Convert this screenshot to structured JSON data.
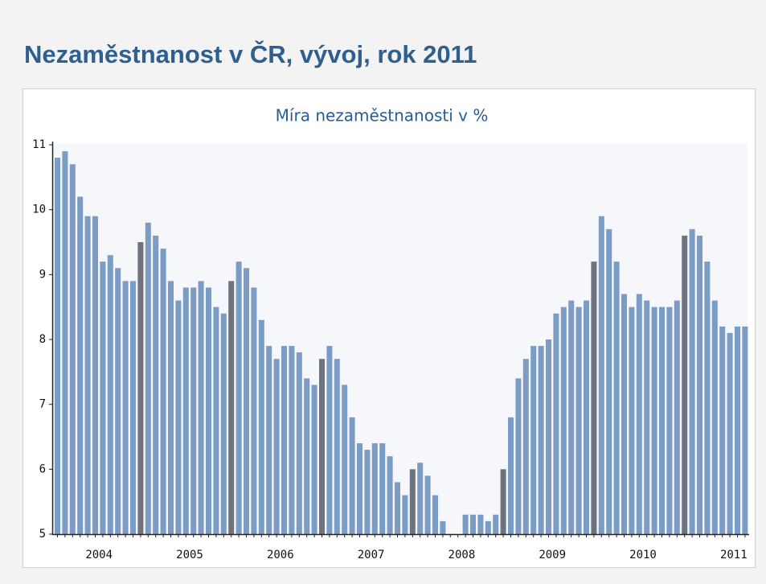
{
  "header": {
    "title": "Nezaměstnanost v ČR, vývoj, rok 2011"
  },
  "chart_data": {
    "type": "bar",
    "title": "Míra nezaměstnanosti v %",
    "categories": [
      null,
      null,
      null,
      null,
      null,
      null,
      null,
      null,
      null,
      null,
      null,
      null,
      null,
      null,
      null,
      null,
      null,
      null,
      null,
      null,
      null,
      null,
      null,
      null,
      null,
      null,
      null,
      null,
      null,
      null,
      null,
      null,
      null,
      null,
      null,
      null,
      null,
      null,
      null,
      null,
      null,
      null,
      null,
      null,
      null,
      null,
      null,
      null,
      null,
      null,
      null,
      null,
      null,
      null,
      null,
      null,
      null,
      null,
      null,
      null,
      null,
      null,
      null,
      null,
      null,
      null,
      null,
      null,
      null,
      null,
      null,
      null,
      null,
      null,
      null,
      null,
      null,
      null,
      null,
      null,
      null,
      null,
      null,
      null,
      null,
      null,
      null,
      null,
      null,
      null,
      null,
      null
    ],
    "values": [
      10.8,
      10.9,
      10.7,
      10.2,
      9.9,
      9.9,
      9.2,
      9.3,
      9.1,
      8.9,
      8.9,
      9.5,
      9.8,
      9.6,
      9.4,
      8.9,
      8.6,
      8.8,
      8.8,
      8.9,
      8.8,
      8.5,
      8.4,
      8.9,
      9.2,
      9.1,
      8.8,
      8.3,
      7.9,
      7.7,
      7.9,
      7.9,
      7.8,
      7.4,
      7.3,
      7.7,
      7.9,
      7.7,
      7.3,
      6.8,
      6.4,
      6.3,
      6.4,
      6.4,
      6.2,
      5.8,
      5.6,
      6.0,
      6.1,
      5.9,
      5.6,
      5.2,
      5.0,
      5.0,
      5.3,
      5.3,
      5.3,
      5.2,
      5.3,
      6.0,
      6.8,
      7.4,
      7.7,
      7.9,
      7.9,
      8.0,
      8.4,
      8.5,
      8.6,
      8.5,
      8.6,
      9.2,
      9.9,
      9.7,
      9.2,
      8.7,
      8.5,
      8.7,
      8.6,
      8.5,
      8.5,
      8.5,
      8.6,
      9.6,
      9.7,
      9.6,
      9.2,
      8.6,
      8.2,
      8.1,
      8.2,
      8.2
    ],
    "colors": [
      "#7b9cc4",
      "#7b9cc4",
      "#7b9cc4",
      "#7b9cc4",
      "#7b9cc4",
      "#7b9cc4",
      "#7b9cc4",
      "#7b9cc4",
      "#7b9cc4",
      "#7b9cc4",
      "#7b9cc4",
      "#6d7480",
      "#7b9cc4",
      "#7b9cc4",
      "#7b9cc4",
      "#7b9cc4",
      "#7b9cc4",
      "#7b9cc4",
      "#7b9cc4",
      "#7b9cc4",
      "#7b9cc4",
      "#7b9cc4",
      "#7b9cc4",
      "#6d7480",
      "#7b9cc4",
      "#7b9cc4",
      "#7b9cc4",
      "#7b9cc4",
      "#7b9cc4",
      "#7b9cc4",
      "#7b9cc4",
      "#7b9cc4",
      "#7b9cc4",
      "#7b9cc4",
      "#7b9cc4",
      "#6d7480",
      "#7b9cc4",
      "#7b9cc4",
      "#7b9cc4",
      "#7b9cc4",
      "#7b9cc4",
      "#7b9cc4",
      "#7b9cc4",
      "#7b9cc4",
      "#7b9cc4",
      "#7b9cc4",
      "#7b9cc4",
      "#6d7480",
      "#7b9cc4",
      "#7b9cc4",
      "#7b9cc4",
      "#7b9cc4",
      "#7b9cc4",
      "#7b9cc4",
      "#7b9cc4",
      "#7b9cc4",
      "#7b9cc4",
      "#7b9cc4",
      "#7b9cc4",
      "#6d7480",
      "#7b9cc4",
      "#7b9cc4",
      "#7b9cc4",
      "#7b9cc4",
      "#7b9cc4",
      "#7b9cc4",
      "#7b9cc4",
      "#7b9cc4",
      "#7b9cc4",
      "#7b9cc4",
      "#7b9cc4",
      "#6d7480",
      "#7b9cc4",
      "#7b9cc4",
      "#7b9cc4",
      "#7b9cc4",
      "#7b9cc4",
      "#7b9cc4",
      "#7b9cc4",
      "#7b9cc4",
      "#7b9cc4",
      "#7b9cc4",
      "#7b9cc4",
      "#6d7480",
      "#7b9cc4",
      "#7b9cc4",
      "#7b9cc4",
      "#7b9cc4",
      "#7b9cc4",
      "#7b9cc4",
      "#7b9cc4",
      "#7b9cc4"
    ],
    "year_labels": [
      "2004",
      "2005",
      "2006",
      "2007",
      "2008",
      "2009",
      "2010",
      "2011"
    ],
    "ylim": [
      5,
      11
    ],
    "yticks": [
      5,
      6,
      7,
      8,
      9,
      10,
      11
    ]
  }
}
